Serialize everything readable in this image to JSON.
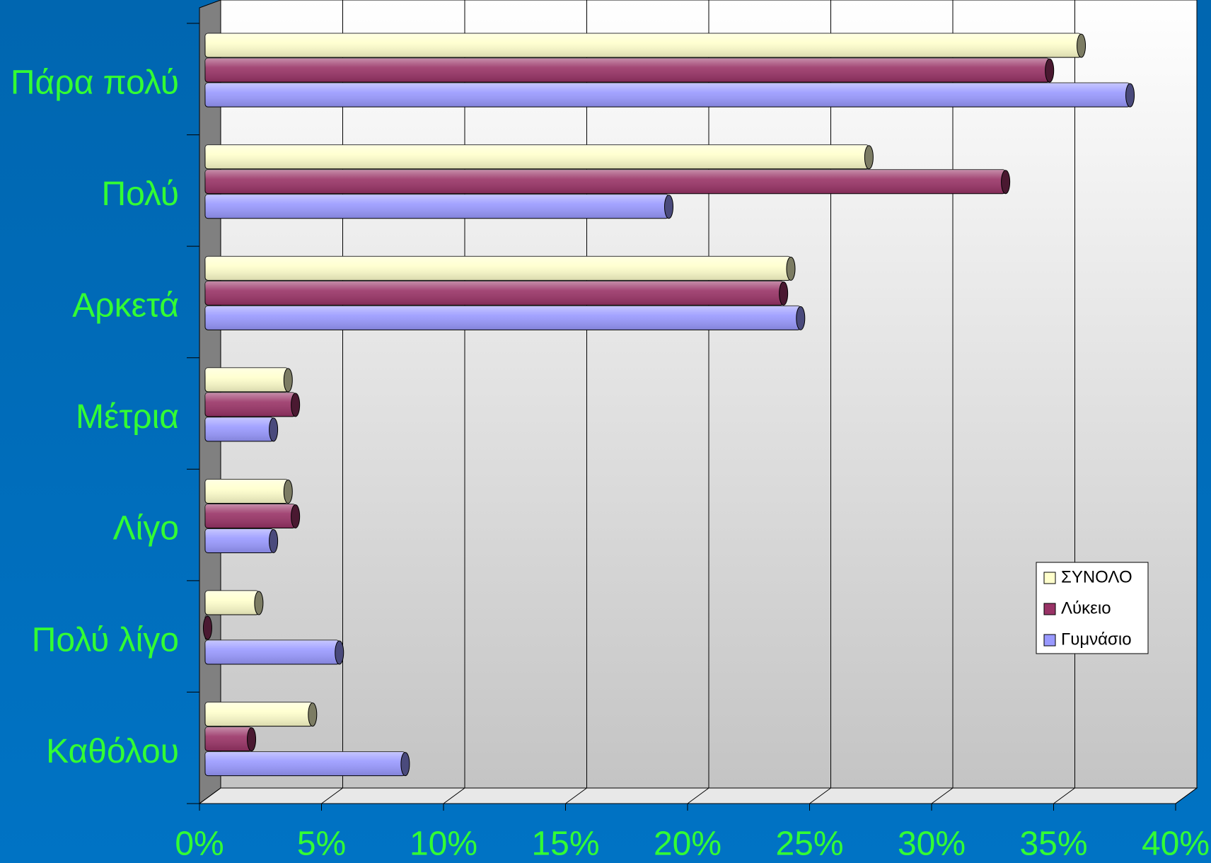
{
  "chart_data": {
    "type": "bar",
    "orientation": "horizontal",
    "categories": [
      "Πάρα πολύ",
      "Πολύ",
      "Αρκετά",
      "Μέτρια",
      "Λίγο",
      "Πολύ λίγο",
      "Καθόλου"
    ],
    "series": [
      {
        "name": "ΣΥΝΟΛΟ",
        "color": "#ffffcc",
        "values": [
          35.9,
          27.2,
          24.0,
          3.4,
          3.4,
          2.2,
          4.4
        ]
      },
      {
        "name": "Λύκειο",
        "color": "#993366",
        "values": [
          34.6,
          32.8,
          23.7,
          3.7,
          3.7,
          0.1,
          1.9
        ]
      },
      {
        "name": "Γυμνάσιο",
        "color": "#9999ff",
        "values": [
          37.9,
          19.0,
          24.4,
          2.8,
          2.8,
          5.5,
          8.2
        ]
      }
    ],
    "xlim": [
      0,
      40
    ],
    "xticks": [
      {
        "value": 0,
        "label": "0%"
      },
      {
        "value": 5,
        "label": "5%"
      },
      {
        "value": 10,
        "label": "10%"
      },
      {
        "value": 15,
        "label": "15%"
      },
      {
        "value": 20,
        "label": "20%"
      },
      {
        "value": 25,
        "label": "25%"
      },
      {
        "value": 30,
        "label": "30%"
      },
      {
        "value": 35,
        "label": "35%"
      },
      {
        "value": 40,
        "label": "40%"
      }
    ],
    "grid": true,
    "legend": "right"
  }
}
